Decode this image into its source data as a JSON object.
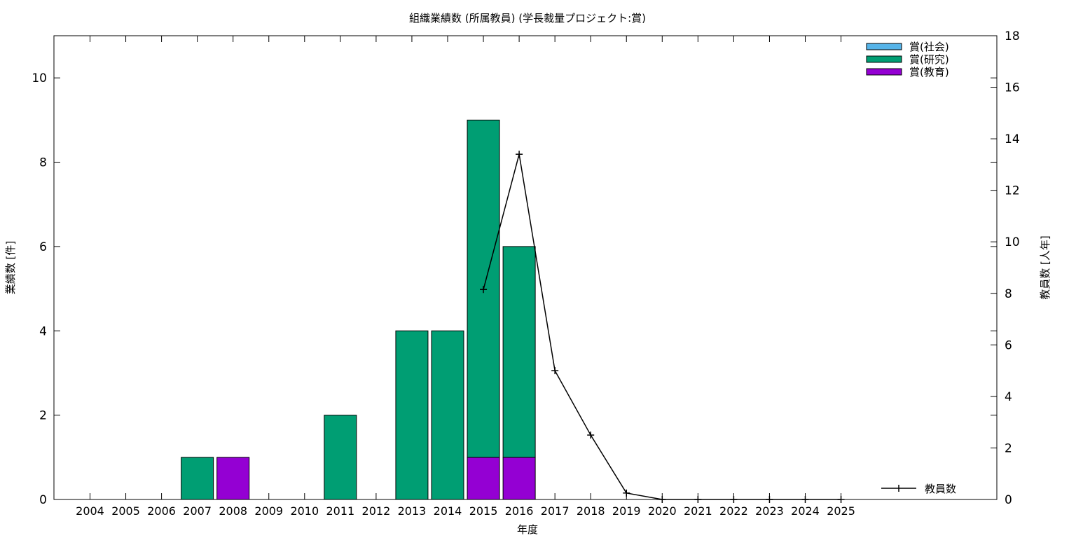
{
  "chart_data": {
    "type": "bar",
    "stacked": true,
    "title": "組織業績数 (所属教員) (学長裁量プロジェクト:賞)",
    "xlabel": "年度",
    "ylabel": "業績数 [件]",
    "y2label": "教員数 [人年]",
    "ylim": [
      0,
      11
    ],
    "y2lim": [
      0,
      18
    ],
    "yticks": [
      "0",
      "2",
      "4",
      "6",
      "8",
      "10"
    ],
    "y2ticks": [
      "0",
      "2",
      "4",
      "6",
      "8",
      "10",
      "12",
      "14",
      "16",
      "18"
    ],
    "categories": [
      "2004",
      "2005",
      "2006",
      "2007",
      "2008",
      "2009",
      "2010",
      "2011",
      "2012",
      "2013",
      "2014",
      "2015",
      "2016",
      "2017",
      "2018",
      "2019",
      "2020",
      "2021",
      "2022",
      "2023",
      "2024",
      "2025"
    ],
    "series": [
      {
        "name": "賞(社会)",
        "color": "#56b4e9",
        "values": [
          0,
          0,
          0,
          0,
          0,
          0,
          0,
          0,
          0,
          0,
          0,
          0,
          0,
          0,
          0,
          0,
          0,
          0,
          0,
          0,
          0,
          0
        ]
      },
      {
        "name": "賞(研究)",
        "color": "#009e73",
        "values": [
          0,
          0,
          0,
          1,
          0,
          0,
          0,
          2,
          0,
          4,
          4,
          8,
          5,
          0,
          0,
          0,
          0,
          0,
          0,
          0,
          0,
          0
        ]
      },
      {
        "name": "賞(教育)",
        "color": "#9400d3",
        "values": [
          0,
          0,
          0,
          0,
          1,
          0,
          0,
          0,
          0,
          0,
          0,
          1,
          1,
          0,
          0,
          0,
          0,
          0,
          0,
          0,
          0,
          0
        ]
      }
    ],
    "line_series": {
      "name": "教員数",
      "axis": "y2",
      "color": "#000000",
      "x": [
        "2015",
        "2016",
        "2017",
        "2018",
        "2019",
        "2020",
        "2021",
        "2022",
        "2023",
        "2024",
        "2025"
      ],
      "values": [
        8.15,
        13.4,
        5.0,
        2.5,
        0.25,
        0.0,
        0.0,
        0.0,
        0.0,
        0.0,
        0.0
      ]
    },
    "legend_position": "top-right",
    "line_legend_position": "bottom-right"
  }
}
